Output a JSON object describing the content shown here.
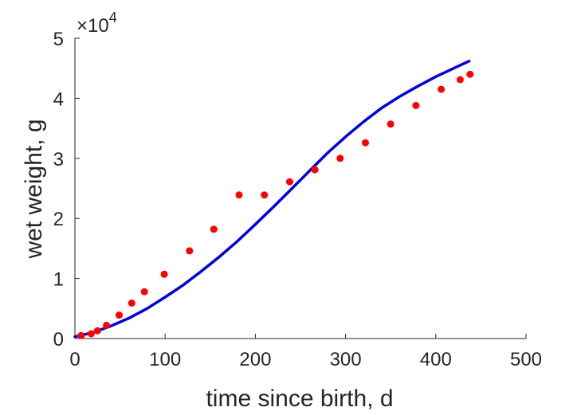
{
  "chart_data": {
    "type": "scatter",
    "xlabel": "time since birth, d",
    "ylabel": "wet weight, g",
    "xlim": [
      0,
      500
    ],
    "ylim": [
      0,
      50000
    ],
    "x_ticks": [
      "0",
      "100",
      "200",
      "300",
      "400",
      "500"
    ],
    "y_ticks": [
      "0",
      "1",
      "2",
      "3",
      "4",
      "5"
    ],
    "y_multiplier": {
      "base": "×10",
      "power": "4"
    },
    "grid": false,
    "colors": {
      "data": "#ff0000",
      "fit": "#0000dd",
      "axis": "#262626"
    },
    "series": [
      {
        "type": "scatter",
        "x": [
          7,
          18,
          25,
          35,
          49,
          63,
          77,
          99,
          127,
          154,
          182,
          210,
          238,
          266,
          294,
          322,
          350,
          378,
          406,
          427,
          438
        ],
        "y": [
          500,
          800,
          1300,
          2200,
          3900,
          5900,
          7800,
          10700,
          14600,
          18200,
          23900,
          23900,
          26100,
          28100,
          30000,
          32600,
          35700,
          38800,
          41500,
          43100,
          44000
        ]
      },
      {
        "type": "line",
        "x": [
          0,
          20,
          40,
          60,
          80,
          100,
          120,
          140,
          160,
          180,
          200,
          220,
          240,
          260,
          280,
          300,
          320,
          340,
          360,
          380,
          400,
          420,
          437
        ],
        "y": [
          300,
          1000,
          2100,
          3400,
          5000,
          6900,
          8900,
          11200,
          13600,
          16200,
          19000,
          21900,
          24900,
          27900,
          30900,
          33600,
          36100,
          38400,
          40300,
          42000,
          43600,
          45000,
          46200
        ]
      }
    ]
  }
}
